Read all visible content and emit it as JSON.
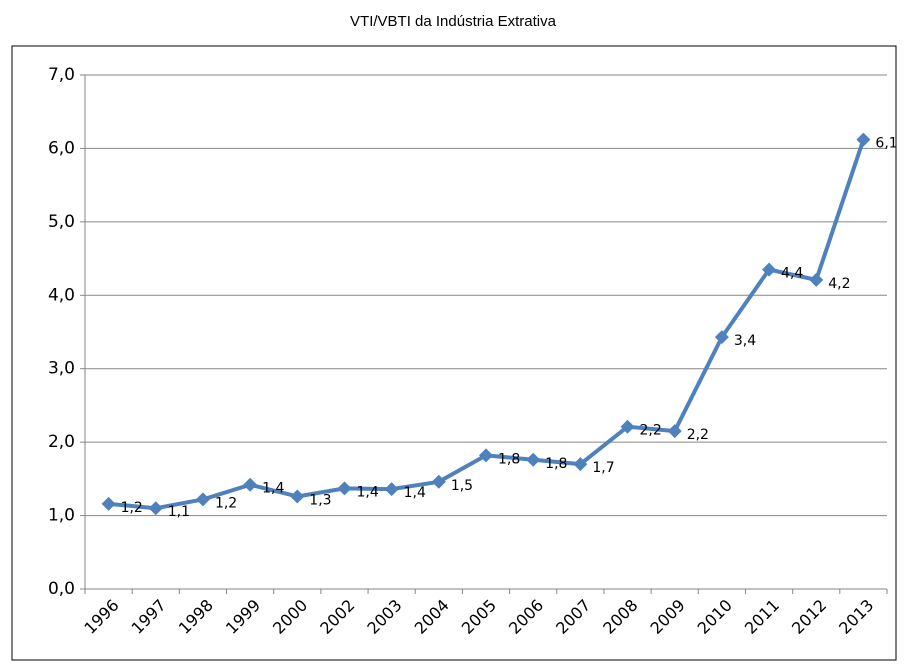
{
  "chart_data": {
    "type": "line",
    "title": "VTI/VBTI da Indústria Extrativa",
    "categories": [
      "1996",
      "1997",
      "1998",
      "1999",
      "2000",
      "2002",
      "2003",
      "2004",
      "2005",
      "2006",
      "2007",
      "2008",
      "2009",
      "2010",
      "2011",
      "2012",
      "2013"
    ],
    "series": [
      {
        "name": "VTI/VBTI",
        "color": "#4f81bd",
        "values": [
          1.16,
          1.1,
          1.22,
          1.42,
          1.26,
          1.37,
          1.36,
          1.46,
          1.82,
          1.76,
          1.7,
          2.21,
          2.15,
          3.43,
          4.35,
          4.21,
          6.12
        ],
        "value_labels": [
          "1,2",
          "1,1",
          "1,2",
          "1,4",
          "1,3",
          "1,4",
          "1,4",
          "1,5",
          "1,8",
          "1,8",
          "1,7",
          "2,2",
          "2,2",
          "3,4",
          "4,4",
          "4,2",
          "6,1"
        ]
      }
    ],
    "ylim": [
      0,
      7
    ],
    "yticks": [
      {
        "value": 0,
        "label": "0,0"
      },
      {
        "value": 1,
        "label": "1,0"
      },
      {
        "value": 2,
        "label": "2,0"
      },
      {
        "value": 3,
        "label": "3,0"
      },
      {
        "value": 4,
        "label": "4,0"
      },
      {
        "value": 5,
        "label": "5,0"
      },
      {
        "value": 6,
        "label": "6,0"
      },
      {
        "value": 7,
        "label": "7,0"
      }
    ],
    "grid": true
  }
}
